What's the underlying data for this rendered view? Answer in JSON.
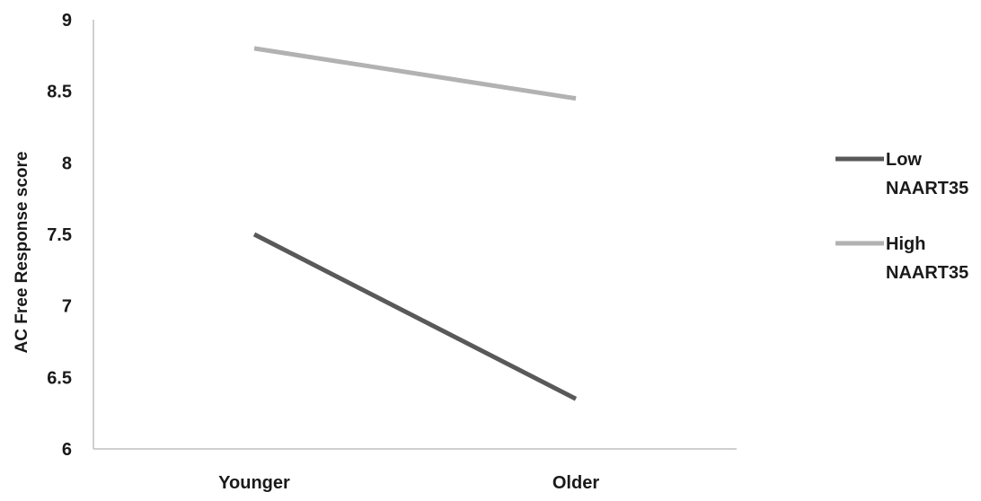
{
  "chart_data": {
    "type": "line",
    "title": "",
    "xlabel": "",
    "ylabel": "AC Free Response score",
    "categories": [
      "Younger",
      "Older"
    ],
    "ylim": [
      6,
      9
    ],
    "yticks": [
      "6",
      "6.5",
      "7",
      "7.5",
      "8",
      "8.5",
      "9"
    ],
    "grid": false,
    "legend_position": "right",
    "series": [
      {
        "name": "Low NAART35",
        "legend_lines": [
          "Low",
          "NAART35"
        ],
        "color": "#595959",
        "values": [
          7.5,
          6.35
        ]
      },
      {
        "name": "High NAART35",
        "legend_lines": [
          "High",
          "NAART35"
        ],
        "color": "#b2b2b2",
        "values": [
          8.8,
          8.45
        ]
      }
    ]
  }
}
